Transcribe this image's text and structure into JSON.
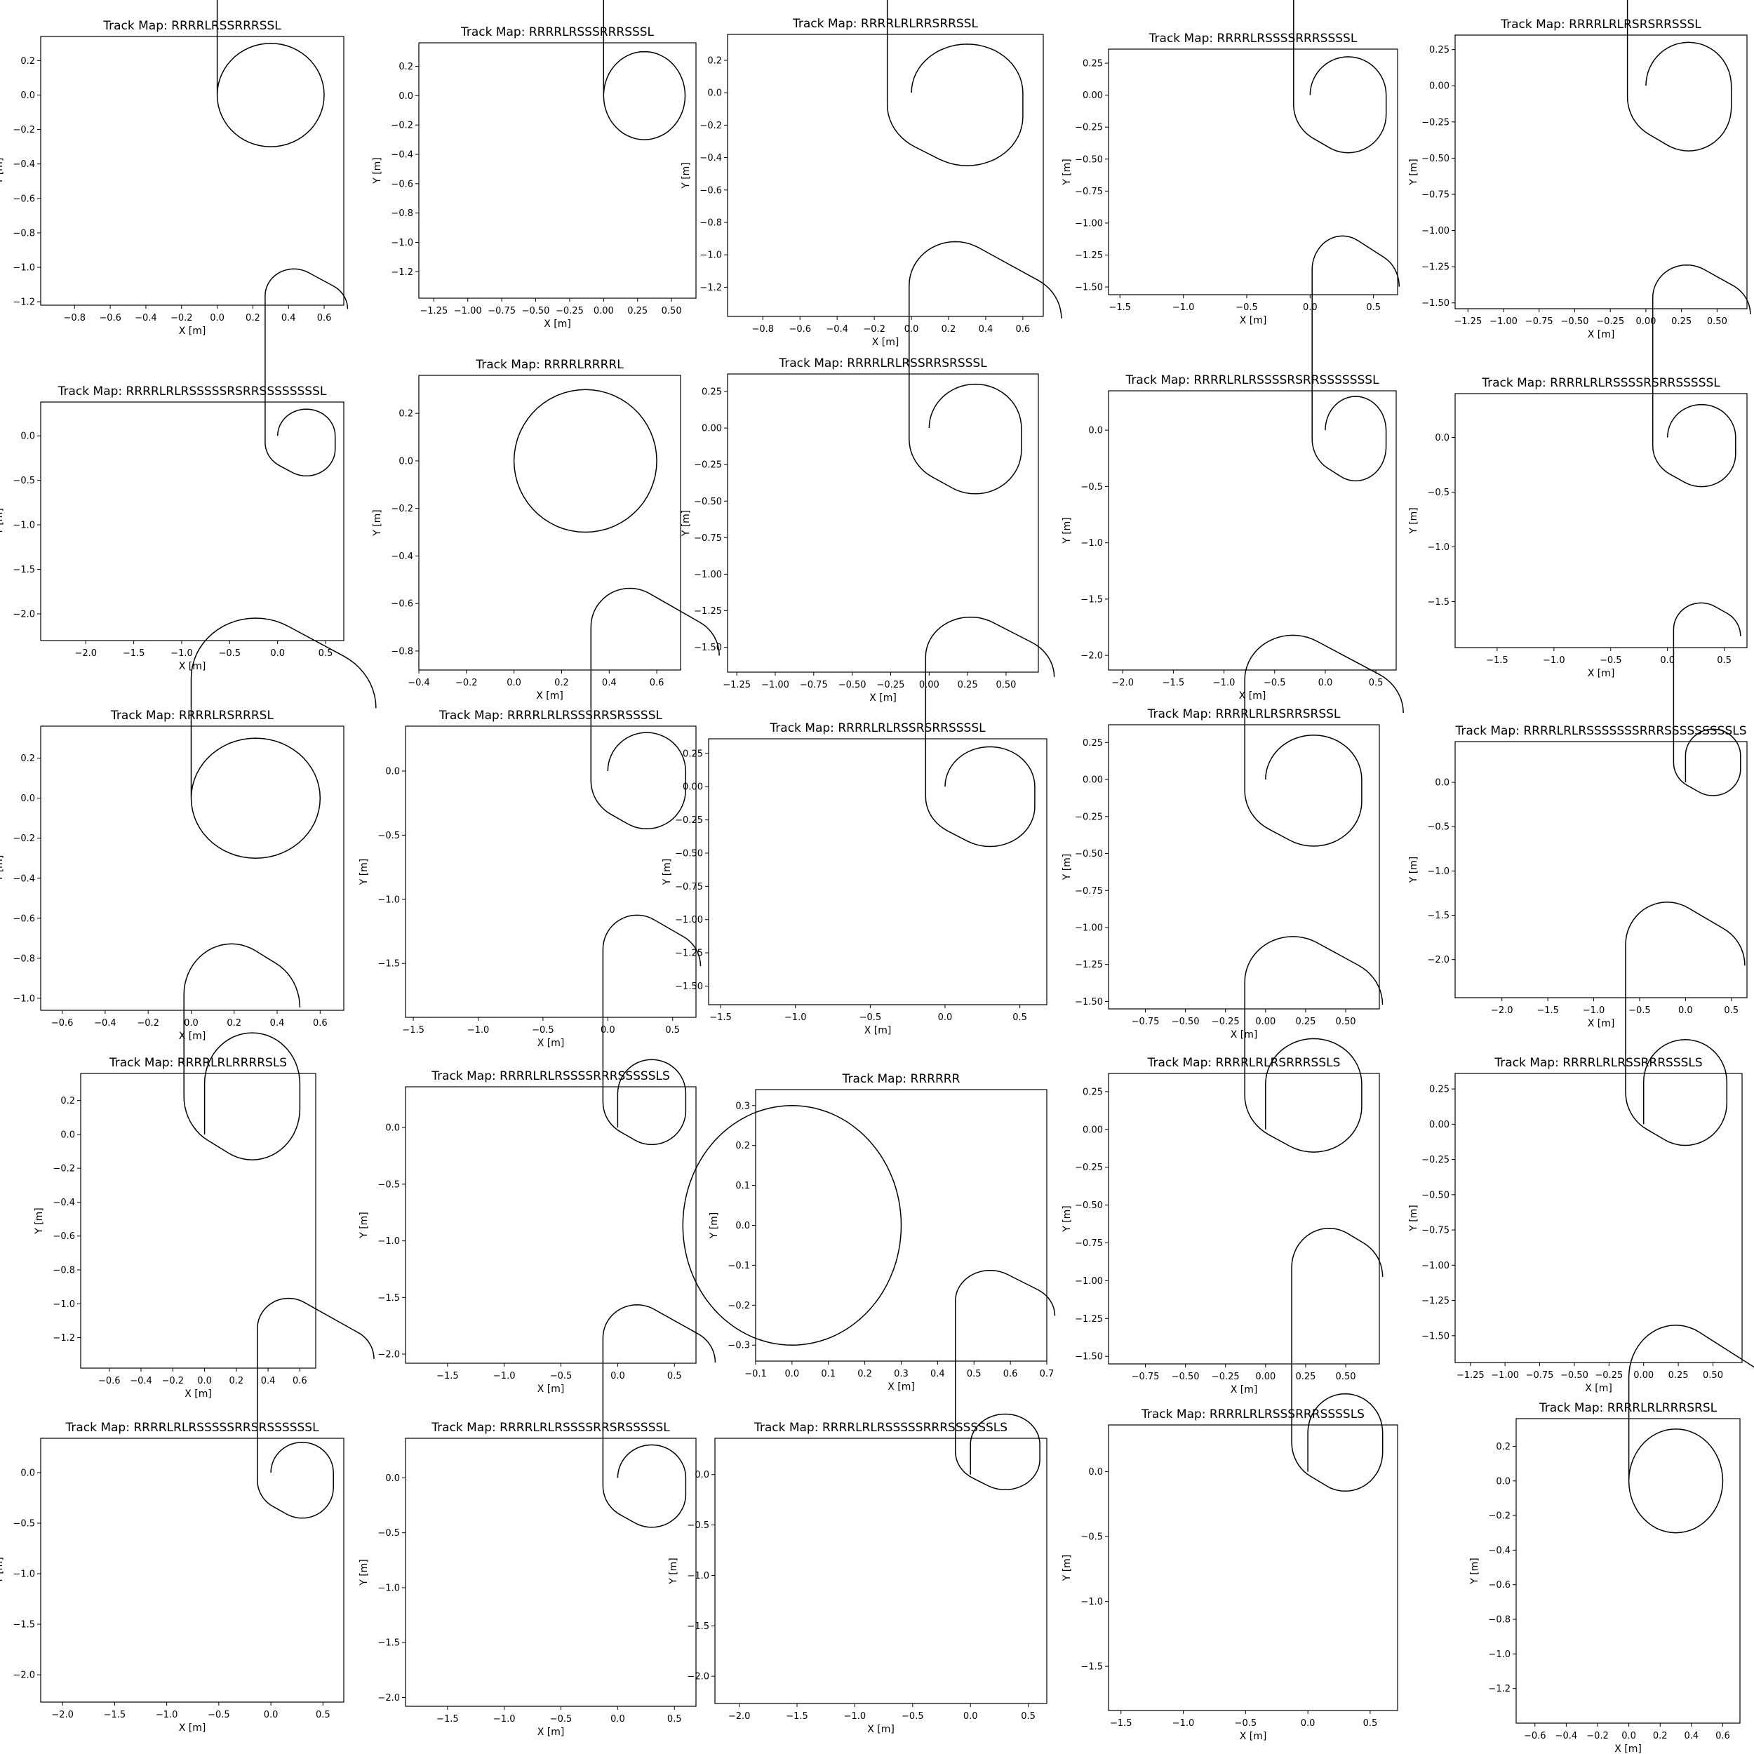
{
  "figure": {
    "background": "#ffffff",
    "line_color": "#000000"
  },
  "chart_data": [
    {
      "type": "line",
      "title": "Track Map: RRRRLRSSRRRSSL",
      "xlabel": "X [m]",
      "ylabel": "Y [m]",
      "x_ticks": [
        "−0.8",
        "−0.6",
        "−0.4",
        "−0.2",
        "0.0",
        "0.2",
        "0.4",
        "0.6"
      ],
      "y_ticks": [
        "−1.2",
        "−1.0",
        "−0.8",
        "−0.6",
        "−0.4",
        "−0.2",
        "0.0",
        "0.2"
      ],
      "xlim": [
        -0.99,
        0.71
      ],
      "ylim": [
        -1.22,
        0.34
      ]
    },
    {
      "type": "line",
      "title": "Track Map: RRRRLRSSSRRRSSSL",
      "xlabel": "X [m]",
      "ylabel": "Y [m]",
      "x_ticks": [
        "−1.25",
        "−1.00",
        "−0.75",
        "−0.50",
        "−0.25",
        "0.00",
        "0.25",
        "0.50"
      ],
      "y_ticks": [
        "−1.2",
        "−1.0",
        "−0.8",
        "−0.6",
        "−0.4",
        "−0.2",
        "0.0",
        "0.2"
      ],
      "xlim": [
        -1.36,
        0.68
      ],
      "ylim": [
        -1.38,
        0.36
      ]
    },
    {
      "type": "line",
      "title": "Track Map: RRRRLRLRRSRRSSL",
      "xlabel": "X [m]",
      "ylabel": "Y [m]",
      "x_ticks": [
        "−0.8",
        "−0.6",
        "−0.4",
        "−0.2",
        "0.0",
        "0.2",
        "0.4",
        "0.6"
      ],
      "y_ticks": [
        "−1.2",
        "−1.0",
        "−0.8",
        "−0.6",
        "−0.4",
        "−0.2",
        "0.0",
        "0.2"
      ],
      "xlim": [
        -0.99,
        0.71
      ],
      "ylim": [
        -1.38,
        0.36
      ]
    },
    {
      "type": "line",
      "title": "Track Map: RRRRLRSSSSRRRSSSSL",
      "xlabel": "X [m]",
      "ylabel": "Y [m]",
      "x_ticks": [
        "−1.5",
        "−1.0",
        "−0.5",
        "0.0",
        "0.5"
      ],
      "y_ticks": [
        "−1.50",
        "−1.25",
        "−1.00",
        "−0.75",
        "−0.50",
        "−0.25",
        "0.00",
        "0.25"
      ],
      "xlim": [
        -1.59,
        0.69
      ],
      "ylim": [
        -1.56,
        0.36
      ]
    },
    {
      "type": "line",
      "title": "Track Map: RRRRLRLRSRSRRSSSL",
      "xlabel": "X [m]",
      "ylabel": "Y [m]",
      "x_ticks": [
        "−1.25",
        "−1.00",
        "−0.75",
        "−0.50",
        "−0.25",
        "0.00",
        "0.25",
        "0.50"
      ],
      "y_ticks": [
        "−1.50",
        "−1.25",
        "−1.00",
        "−0.75",
        "−0.50",
        "−0.25",
        "0.00",
        "0.25"
      ],
      "xlim": [
        -1.34,
        0.71
      ],
      "ylim": [
        -1.54,
        0.35
      ]
    },
    {
      "type": "line",
      "title": "Track Map: RRRRLRLRSSSSSRSRRSSSSSSSSL",
      "xlabel": "X [m]",
      "ylabel": "Y [m]",
      "x_ticks": [
        "−2.0",
        "−1.5",
        "−1.0",
        "−0.5",
        "0.0",
        "0.5"
      ],
      "y_ticks": [
        "−2.0",
        "−1.5",
        "−1.0",
        "−0.5",
        "0.0"
      ],
      "xlim": [
        -2.47,
        0.69
      ],
      "ylim": [
        -2.3,
        0.38
      ]
    },
    {
      "type": "line",
      "title": "Track Map: RRRRLRRRRL",
      "xlabel": "X [m]",
      "ylabel": "Y [m]",
      "x_ticks": [
        "−0.4",
        "−0.2",
        "0.0",
        "0.2",
        "0.4",
        "0.6"
      ],
      "y_ticks": [
        "−0.8",
        "−0.6",
        "−0.4",
        "−0.2",
        "0.0",
        "0.2"
      ],
      "xlim": [
        -0.4,
        0.7
      ],
      "ylim": [
        -0.88,
        0.36
      ]
    },
    {
      "type": "line",
      "title": "Track Map: RRRRLRLRSSRRSRSSSL",
      "xlabel": "X [m]",
      "ylabel": "Y [m]",
      "x_ticks": [
        "−1.25",
        "−1.00",
        "−0.75",
        "−0.50",
        "−0.25",
        "0.00",
        "0.25",
        "0.50"
      ],
      "y_ticks": [
        "−1.50",
        "−1.25",
        "−1.00",
        "−0.75",
        "−0.50",
        "−0.25",
        "0.00",
        "0.25"
      ],
      "xlim": [
        -1.31,
        0.71
      ],
      "ylim": [
        -1.67,
        0.37
      ]
    },
    {
      "type": "line",
      "title": "Track Map: RRRRLRLRSSSSRSRRSSSSSSSL",
      "xlabel": "X [m]",
      "ylabel": "Y [m]",
      "x_ticks": [
        "−2.0",
        "−1.5",
        "−1.0",
        "−0.5",
        "0.0",
        "0.5"
      ],
      "y_ticks": [
        "−2.0",
        "−1.5",
        "−1.0",
        "−0.5",
        "0.0"
      ],
      "xlim": [
        -2.14,
        0.7
      ],
      "ylim": [
        -2.13,
        0.35
      ]
    },
    {
      "type": "line",
      "title": "Track Map: RRRRLRLRSSSSRSRRSSSSSL",
      "xlabel": "X [m]",
      "ylabel": "Y [m]",
      "x_ticks": [
        "−1.5",
        "−1.0",
        "−0.5",
        "0.0",
        "0.5"
      ],
      "y_ticks": [
        "−1.5",
        "−1.0",
        "−0.5",
        "0.0"
      ],
      "xlim": [
        -1.87,
        0.7
      ],
      "ylim": [
        -1.92,
        0.4
      ]
    },
    {
      "type": "line",
      "title": "Track Map: RRRRLRSRRRSL",
      "xlabel": "X [m]",
      "ylabel": "Y [m]",
      "x_ticks": [
        "−0.6",
        "−0.4",
        "−0.2",
        "0.0",
        "0.2",
        "0.4",
        "0.6"
      ],
      "y_ticks": [
        "−1.0",
        "−0.8",
        "−0.6",
        "−0.4",
        "−0.2",
        "0.0",
        "0.2"
      ],
      "xlim": [
        -0.7,
        0.71
      ],
      "ylim": [
        -1.06,
        0.36
      ]
    },
    {
      "type": "line",
      "title": "Track Map: RRRRLRLRSSSRRSRSSSSL",
      "xlabel": "X [m]",
      "ylabel": "Y [m]",
      "x_ticks": [
        "−1.5",
        "−1.0",
        "−0.5",
        "0.0",
        "0.5"
      ],
      "y_ticks": [
        "−1.5",
        "−1.0",
        "−0.5",
        "0.0"
      ],
      "xlim": [
        -1.56,
        0.68
      ],
      "ylim": [
        -1.92,
        0.35
      ]
    },
    {
      "type": "line",
      "title": "Track Map: RRRRLRLRSSRSRRSSSSL",
      "xlabel": "X [m]",
      "ylabel": "Y [m]",
      "x_ticks": [
        "−1.5",
        "−1.0",
        "−0.5",
        "0.0",
        "0.5"
      ],
      "y_ticks": [
        "−1.50",
        "−1.25",
        "−1.00",
        "−0.75",
        "−0.50",
        "−0.25",
        "0.00",
        "0.25"
      ],
      "xlim": [
        -1.58,
        0.68
      ],
      "ylim": [
        -1.64,
        0.36
      ]
    },
    {
      "type": "line",
      "title": "Track Map: RRRRLRLRSRRSRSSL",
      "xlabel": "X [m]",
      "ylabel": "Y [m]",
      "x_ticks": [
        "−0.75",
        "−0.50",
        "−0.25",
        "0.00",
        "0.25",
        "0.50"
      ],
      "y_ticks": [
        "−1.50",
        "−1.25",
        "−1.00",
        "−0.75",
        "−0.50",
        "−0.25",
        "0.00",
        "0.25"
      ],
      "xlim": [
        -0.98,
        0.71
      ],
      "ylim": [
        -1.55,
        0.37
      ]
    },
    {
      "type": "line",
      "title": "Track Map: RRRRLRLRSSSSSSSRRRSSSSSSSSSLS",
      "xlabel": "X [m]",
      "ylabel": "Y [m]",
      "x_ticks": [
        "−2.0",
        "−1.5",
        "−1.0",
        "−0.5",
        "0.0",
        "0.5"
      ],
      "y_ticks": [
        "−2.0",
        "−1.5",
        "−1.0",
        "−0.5",
        "0.0"
      ],
      "xlim": [
        -2.51,
        0.67
      ],
      "ylim": [
        -2.43,
        0.46
      ]
    },
    {
      "type": "line",
      "title": "Track Map: RRRRLRLRRRRSLS",
      "xlabel": "X [m]",
      "ylabel": "Y [m]",
      "x_ticks": [
        "−0.6",
        "−0.4",
        "−0.2",
        "0.0",
        "0.2",
        "0.4",
        "0.6"
      ],
      "y_ticks": [
        "−1.2",
        "−1.0",
        "−0.8",
        "−0.6",
        "−0.4",
        "−0.2",
        "0.0",
        "0.2"
      ],
      "xlim": [
        -0.78,
        0.7
      ],
      "ylim": [
        -1.38,
        0.36
      ]
    },
    {
      "type": "line",
      "title": "Track Map: RRRRLRLRSSSSRRRSSSSSLS",
      "xlabel": "X [m]",
      "ylabel": "Y [m]",
      "x_ticks": [
        "−1.5",
        "−1.0",
        "−0.5",
        "0.0",
        "0.5"
      ],
      "y_ticks": [
        "−2.0",
        "−1.5",
        "−1.0",
        "−0.5",
        "0.0"
      ],
      "xlim": [
        -1.87,
        0.69
      ],
      "ylim": [
        -2.08,
        0.36
      ]
    },
    {
      "type": "line",
      "title": "Track Map: RRRRRR",
      "xlabel": "X [m]",
      "ylabel": "Y [m]",
      "x_ticks": [
        "−0.1",
        "0.0",
        "0.1",
        "0.2",
        "0.3",
        "0.4",
        "0.5",
        "0.6",
        "0.7"
      ],
      "y_ticks": [
        "−0.3",
        "−0.2",
        "−0.1",
        "0.0",
        "0.1",
        "0.2",
        "0.3"
      ],
      "xlim": [
        -0.1,
        0.7
      ],
      "ylim": [
        -0.34,
        0.34
      ]
    },
    {
      "type": "line",
      "title": "Track Map: RRRRLRLRSRRRSSLS",
      "xlabel": "X [m]",
      "ylabel": "Y [m]",
      "x_ticks": [
        "−0.75",
        "−0.50",
        "−0.25",
        "0.00",
        "0.25",
        "0.50"
      ],
      "y_ticks": [
        "−1.50",
        "−1.25",
        "−1.00",
        "−0.75",
        "−0.50",
        "−0.25",
        "0.00",
        "0.25"
      ],
      "xlim": [
        -0.98,
        0.71
      ],
      "ylim": [
        -1.55,
        0.37
      ]
    },
    {
      "type": "line",
      "title": "Track Map: RRRRLRLRSSRRRSSSLS",
      "xlabel": "X [m]",
      "ylabel": "Y [m]",
      "x_ticks": [
        "−1.25",
        "−1.00",
        "−0.75",
        "−0.50",
        "−0.25",
        "0.00",
        "0.25",
        "0.50"
      ],
      "y_ticks": [
        "−1.50",
        "−1.25",
        "−1.00",
        "−0.75",
        "−0.50",
        "−0.25",
        "0.00",
        "0.25"
      ],
      "xlim": [
        -1.36,
        0.71
      ],
      "ylim": [
        -1.69,
        0.36
      ]
    },
    {
      "type": "line",
      "title": "Track Map: RRRRLRLRSSSSSRRSRSSSSSSL",
      "xlabel": "X [m]",
      "ylabel": "Y [m]",
      "x_ticks": [
        "−2.0",
        "−1.5",
        "−1.0",
        "−0.5",
        "0.0",
        "0.5"
      ],
      "y_ticks": [
        "−2.0",
        "−1.5",
        "−1.0",
        "−0.5",
        "0.0"
      ],
      "xlim": [
        -2.21,
        0.7
      ],
      "ylim": [
        -2.27,
        0.34
      ]
    },
    {
      "type": "line",
      "title": "Track Map: RRRRLRLRSSSSRRSRSSSSSL",
      "xlabel": "X [m]",
      "ylabel": "Y [m]",
      "x_ticks": [
        "−1.5",
        "−1.0",
        "−0.5",
        "0.0",
        "0.5"
      ],
      "y_ticks": [
        "−2.0",
        "−1.5",
        "−1.0",
        "−0.5",
        "0.0"
      ],
      "xlim": [
        -1.87,
        0.69
      ],
      "ylim": [
        -2.08,
        0.36
      ]
    },
    {
      "type": "line",
      "title": "Track Map: RRRRLRLRSSSSSRRRSSSSSSLS",
      "xlabel": "X [m]",
      "ylabel": "Y [m]",
      "x_ticks": [
        "−2.0",
        "−1.5",
        "−1.0",
        "−0.5",
        "0.0",
        "0.5"
      ],
      "y_ticks": [
        "−2.0",
        "−1.5",
        "−1.0",
        "−0.5",
        "0.0"
      ],
      "xlim": [
        -2.21,
        0.66
      ],
      "ylim": [
        -2.27,
        0.36
      ]
    },
    {
      "type": "line",
      "title": "Track Map: RRRRLRLRSSSRRRSSSSLS",
      "xlabel": "X [m]",
      "ylabel": "Y [m]",
      "x_ticks": [
        "−1.5",
        "−1.0",
        "−0.5",
        "0.0",
        "0.5"
      ],
      "y_ticks": [
        "−1.5",
        "−1.0",
        "−0.5",
        "0.0"
      ],
      "xlim": [
        -1.6,
        0.72
      ],
      "ylim": [
        -1.84,
        0.36
      ]
    },
    {
      "type": "line",
      "title": "Track Map: RRRRLRLRRRSRSL",
      "xlabel": "X [m]",
      "ylabel": "Y [m]",
      "x_ticks": [
        "−0.6",
        "−0.4",
        "−0.2",
        "0.0",
        "0.2",
        "0.4",
        "0.6"
      ],
      "y_ticks": [
        "−1.2",
        "−1.0",
        "−0.8",
        "−0.6",
        "−0.4",
        "−0.2",
        "0.0",
        "0.2"
      ],
      "xlim": [
        -0.72,
        0.71
      ],
      "ylim": [
        -1.4,
        0.36
      ]
    }
  ]
}
